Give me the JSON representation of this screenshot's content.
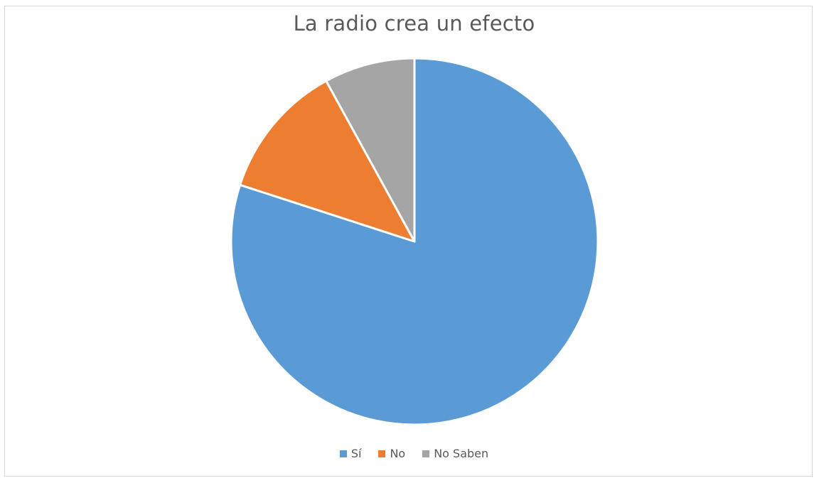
{
  "chart_data": {
    "type": "pie",
    "title": "La radio crea un efecto",
    "series": [
      {
        "name": "Sí",
        "value": 80,
        "color": "#5b9bd5"
      },
      {
        "name": "No",
        "value": 12,
        "color": "#ed7d31"
      },
      {
        "name": "No Saben",
        "value": 8,
        "color": "#a5a5a5"
      }
    ],
    "legend_position": "bottom",
    "start": "12 o'clock",
    "direction": "clockwise"
  }
}
